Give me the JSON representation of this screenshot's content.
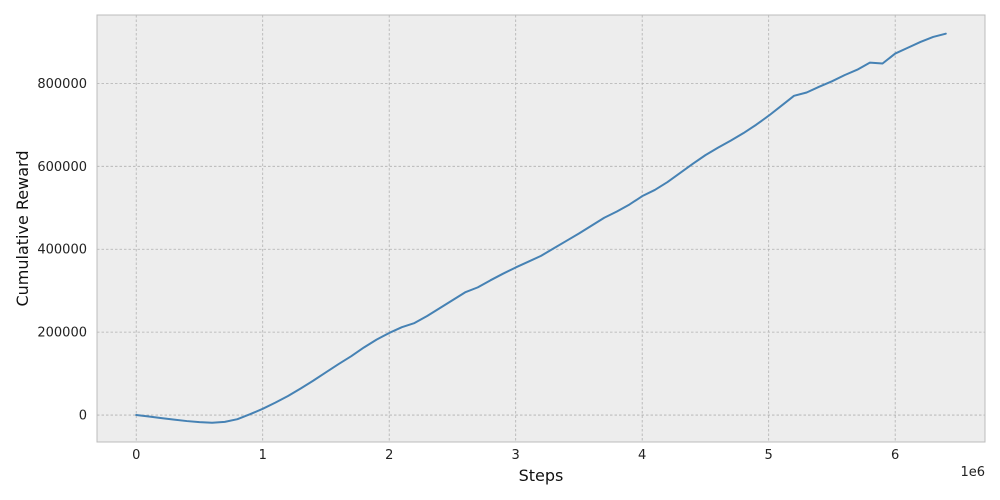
{
  "chart_data": {
    "type": "line",
    "title": "",
    "xlabel": "Steps",
    "ylabel": "Cumulative Reward",
    "x_offset_label": "1e6",
    "xlim": [
      -0.31,
      6.71
    ],
    "ylim": [
      -65000,
      965000
    ],
    "x_ticks": [
      0,
      1,
      2,
      3,
      4,
      5,
      6
    ],
    "x_tick_labels": [
      "0",
      "1",
      "2",
      "3",
      "4",
      "5",
      "6"
    ],
    "y_ticks": [
      0,
      200000,
      400000,
      600000,
      800000
    ],
    "y_tick_labels": [
      "0",
      "200000",
      "400000",
      "600000",
      "800000"
    ],
    "grid": true,
    "legend": "none",
    "colors": {
      "line": "#4682b4",
      "plot_background": "#ededed",
      "grid": "#b0b0b0",
      "frame": "#bcbcbc"
    },
    "series": [
      {
        "x": [
          0,
          0.1,
          0.2,
          0.3,
          0.4,
          0.5,
          0.6,
          0.7,
          0.8,
          0.9,
          1.0,
          1.1,
          1.2,
          1.3,
          1.4,
          1.5,
          1.6,
          1.7,
          1.8,
          1.9,
          2.0,
          2.1,
          2.2,
          2.3,
          2.4,
          2.5,
          2.6,
          2.7,
          2.8,
          2.9,
          3.0,
          3.1,
          3.2,
          3.3,
          3.4,
          3.5,
          3.6,
          3.7,
          3.8,
          3.9,
          4.0,
          4.1,
          4.2,
          4.3,
          4.4,
          4.5,
          4.6,
          4.7,
          4.8,
          4.9,
          5.0,
          5.1,
          5.2,
          5.3,
          5.4,
          5.5,
          5.6,
          5.7,
          5.8,
          5.9,
          6.0,
          6.1,
          6.2,
          6.3,
          6.4
        ],
        "y": [
          0,
          -3500,
          -7500,
          -11000,
          -14500,
          -17000,
          -18500,
          -16500,
          -10000,
          2000,
          15000,
          30000,
          46000,
          64000,
          83000,
          103000,
          123000,
          142000,
          163000,
          182000,
          198000,
          212000,
          222000,
          239000,
          258000,
          277000,
          296000,
          308000,
          325000,
          341000,
          356000,
          370000,
          384000,
          402000,
          420000,
          438000,
          457000,
          476000,
          491000,
          508000,
          528000,
          543000,
          562000,
          584000,
          606000,
          627000,
          645000,
          662000,
          680000,
          700000,
          722000,
          746000,
          770000,
          778000,
          792000,
          805000,
          820000,
          833000,
          850000,
          848000,
          872000,
          886000,
          900000,
          912000,
          920000
        ]
      }
    ]
  }
}
